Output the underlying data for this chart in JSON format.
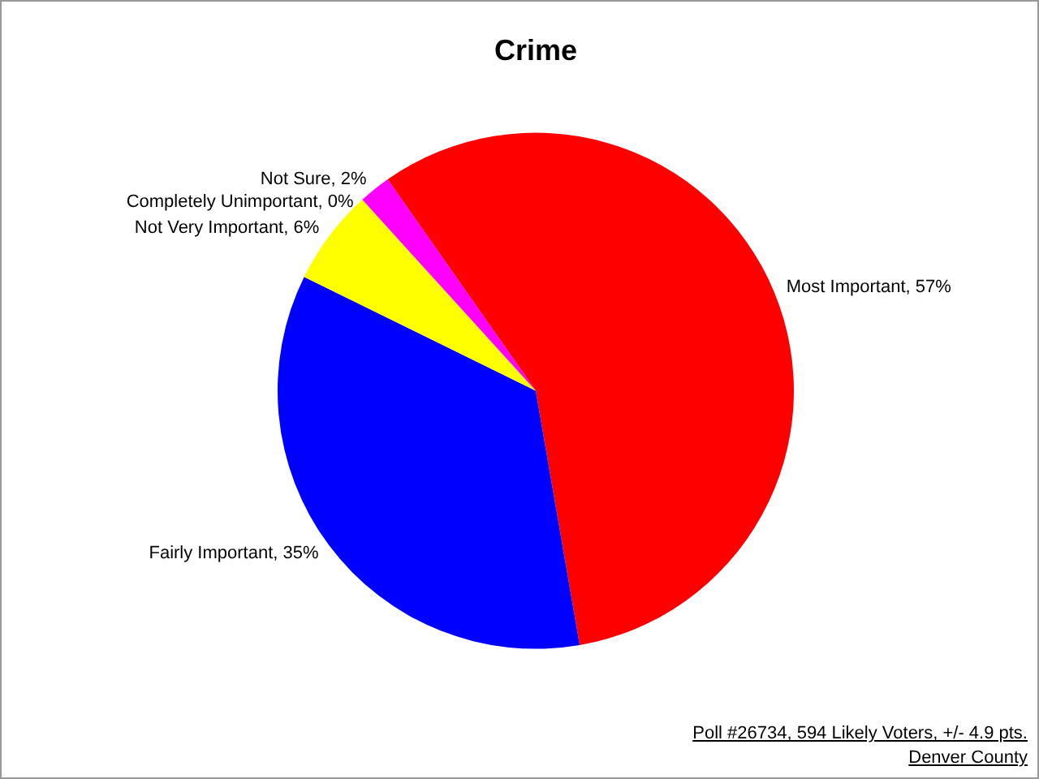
{
  "chart_data": {
    "type": "pie",
    "title": "Crime",
    "categories": [
      "Most Important",
      "Fairly Important",
      "Not Very Important",
      "Completely Unimportant",
      "Not Sure"
    ],
    "values": [
      57,
      35,
      6,
      0,
      2
    ],
    "value_labels": [
      ", 57%",
      ", 35%",
      ", 6%",
      ", 0%",
      ", 2%"
    ],
    "colors": [
      "#ff0000",
      "#0000ff",
      "#ffff00",
      "#008000",
      "#ff00ff"
    ],
    "legend": false,
    "annotations": [
      "Poll #26734, 594 Likely Voters, +/- 4.9 pts.",
      "Denver County"
    ]
  }
}
